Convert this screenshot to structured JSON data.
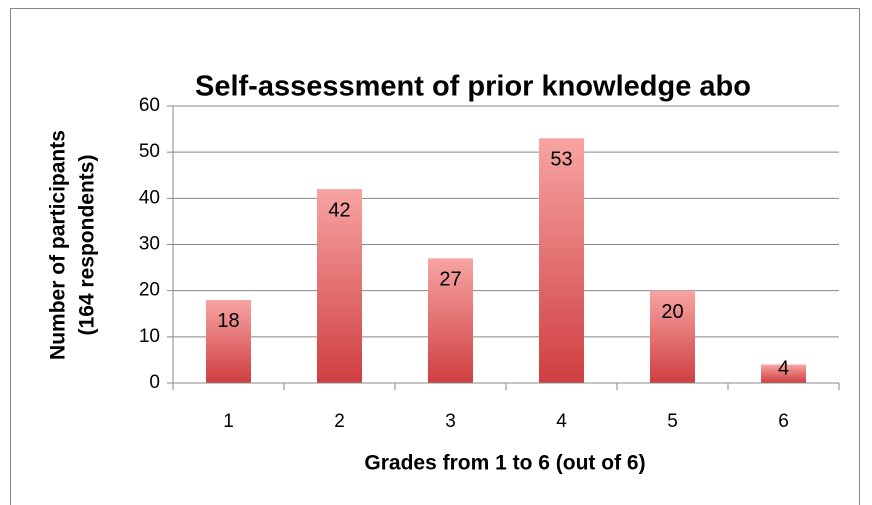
{
  "chart_data": {
    "type": "bar",
    "title": "Self-assessment of prior knowledge abo",
    "ylabel": [
      "Number of participants",
      "(164 respondents)"
    ],
    "xlabel": "Grades from 1 to 6 (out of 6)",
    "categories": [
      "1",
      "2",
      "3",
      "4",
      "5",
      "6"
    ],
    "values": [
      18,
      42,
      27,
      53,
      20,
      4
    ],
    "color": "#d9474a",
    "ylim": [
      0,
      60
    ],
    "yticks": [
      0,
      10,
      20,
      30,
      40,
      50,
      60
    ],
    "grid": true
  }
}
